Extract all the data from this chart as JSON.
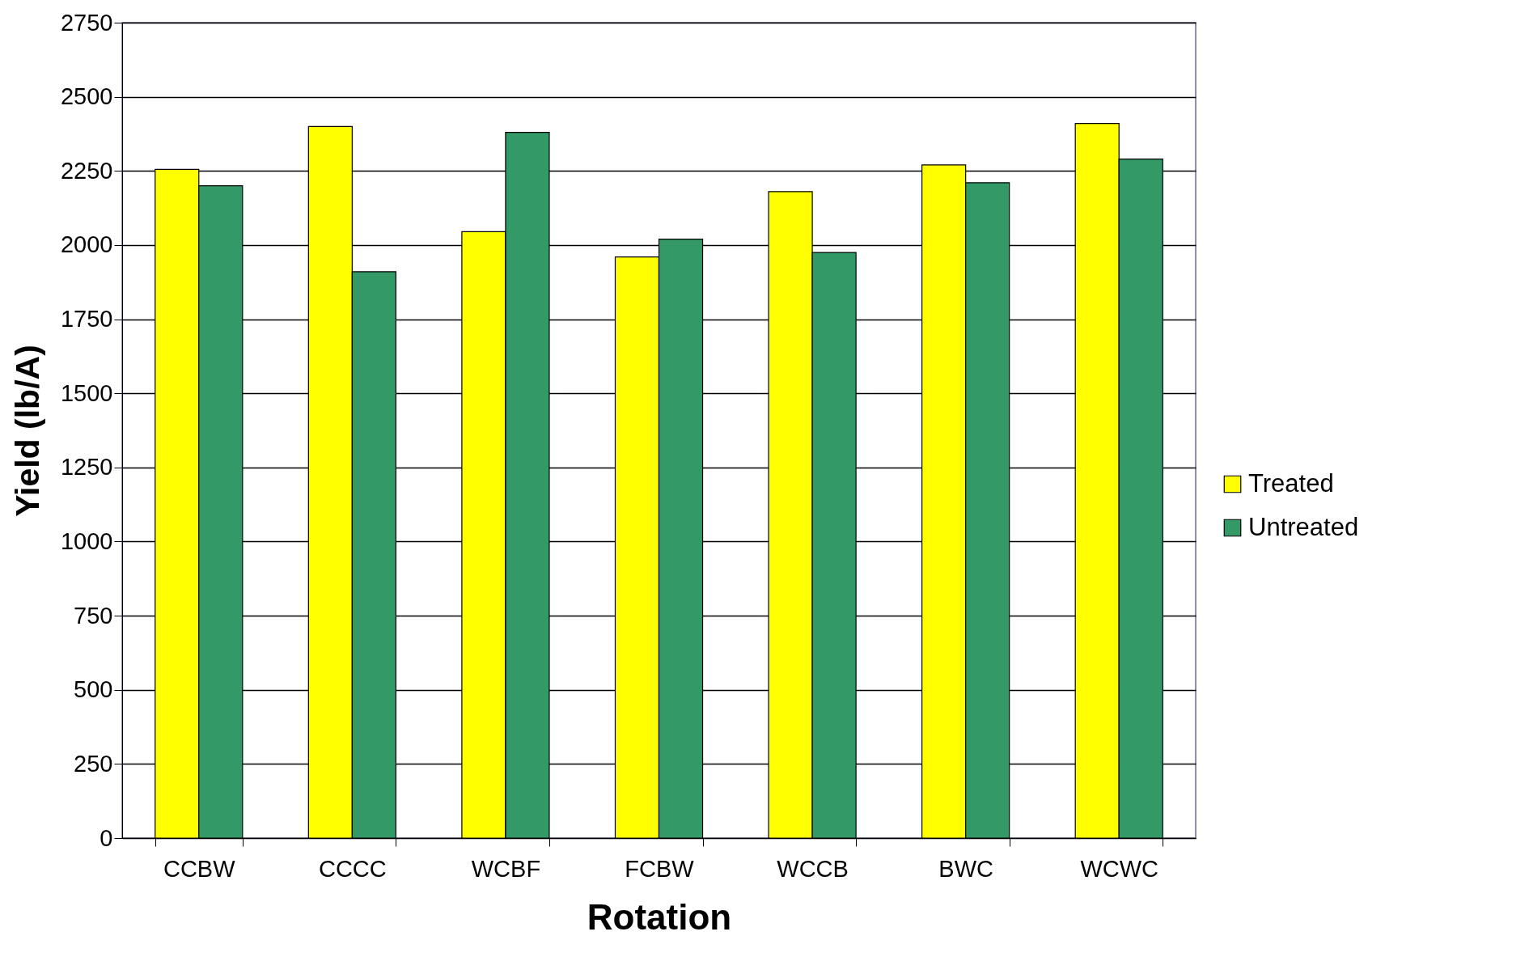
{
  "chart_data": {
    "type": "bar",
    "xlabel": "Rotation",
    "ylabel": "Yield (lb/A)",
    "categories": [
      "CCBW",
      "CCCC",
      "WCBF",
      "FCBW",
      "WCCB",
      "BWC",
      "WCWC"
    ],
    "series": [
      {
        "name": "Treated",
        "color": "#ffff00",
        "values": [
          2255,
          2400,
          2045,
          1960,
          2180,
          2270,
          2410
        ]
      },
      {
        "name": "Untreated",
        "color": "#339966",
        "values": [
          2200,
          1910,
          2380,
          2020,
          1975,
          2210,
          2290
        ]
      }
    ],
    "ylim": [
      0,
      2750
    ],
    "yticks": [
      0,
      250,
      500,
      750,
      1000,
      1250,
      1500,
      1750,
      2000,
      2250,
      2500,
      2750
    ],
    "grid": "y",
    "legend": "right"
  }
}
